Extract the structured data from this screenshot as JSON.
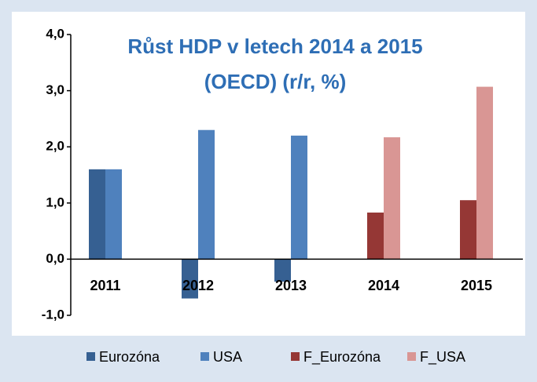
{
  "chart_data": {
    "type": "bar",
    "title": [
      "Růst HDP v letech 2014 a 2015",
      "(OECD) (r/r, %)"
    ],
    "categories": [
      "2011",
      "2012",
      "2013",
      "2014",
      "2015"
    ],
    "series": [
      {
        "name": "Eurozóna",
        "color": "#366092",
        "values": [
          1.6,
          -0.7,
          -0.4,
          null,
          null
        ]
      },
      {
        "name": "USA",
        "color": "#4f81bd",
        "values": [
          1.6,
          2.3,
          2.2,
          null,
          null
        ]
      },
      {
        "name": "F_Eurozóna",
        "color": "#953735",
        "values": [
          null,
          null,
          null,
          0.83,
          1.05
        ]
      },
      {
        "name": "F_USA",
        "color": "#d99694",
        "values": [
          null,
          null,
          null,
          2.17,
          3.07
        ]
      }
    ],
    "ylim": [
      -1,
      4
    ],
    "yticks": [
      {
        "value": -1,
        "label": "-1,0"
      },
      {
        "value": 0,
        "label": "0,0"
      },
      {
        "value": 1,
        "label": "1,0"
      },
      {
        "value": 2,
        "label": "2,0"
      },
      {
        "value": 3,
        "label": "3,0"
      },
      {
        "value": 4,
        "label": "4,0"
      }
    ],
    "grid": false,
    "legend": "bottom"
  }
}
